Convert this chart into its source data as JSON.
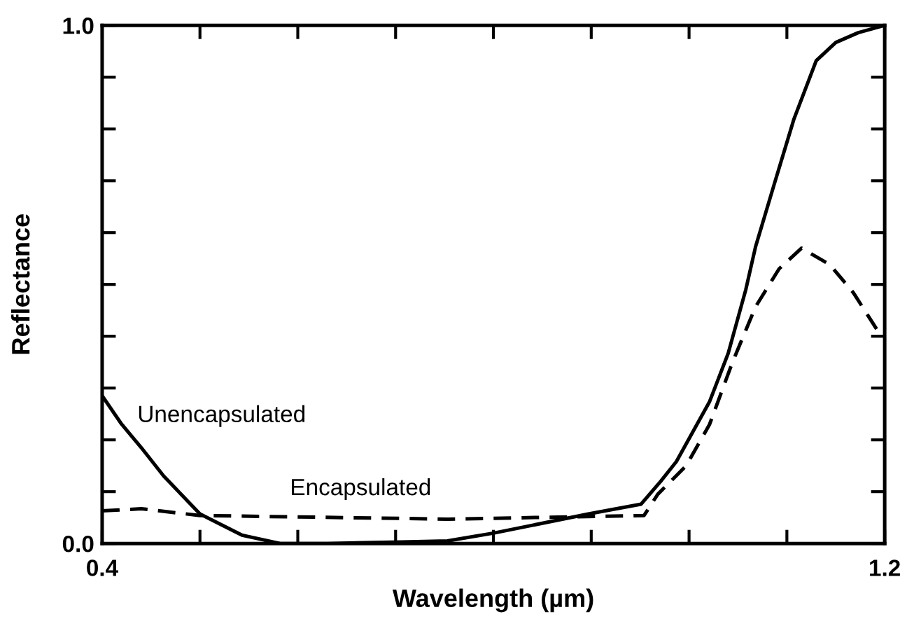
{
  "chart_data": {
    "type": "line",
    "xlabel": "Wavelength (µm)",
    "ylabel": "Reflectance",
    "xlim": [
      0.4,
      1.2
    ],
    "ylim": [
      0.0,
      1.0
    ],
    "xticks": [
      {
        "value": 0.4,
        "label": "0.4"
      },
      {
        "value": 0.5,
        "label": null
      },
      {
        "value": 0.6,
        "label": null
      },
      {
        "value": 0.7,
        "label": null
      },
      {
        "value": 0.8,
        "label": null
      },
      {
        "value": 0.9,
        "label": null
      },
      {
        "value": 1.0,
        "label": null
      },
      {
        "value": 1.1,
        "label": null
      },
      {
        "value": 1.2,
        "label": "1.2"
      }
    ],
    "yticks": [
      {
        "value": 0.0,
        "label": "0.0"
      },
      {
        "value": 0.1,
        "label": null
      },
      {
        "value": 0.2,
        "label": null
      },
      {
        "value": 0.3,
        "label": null
      },
      {
        "value": 0.4,
        "label": null
      },
      {
        "value": 0.5,
        "label": null
      },
      {
        "value": 0.6,
        "label": null
      },
      {
        "value": 0.7,
        "label": null
      },
      {
        "value": 0.8,
        "label": null
      },
      {
        "value": 0.9,
        "label": null
      },
      {
        "value": 1.0,
        "label": "1.0"
      }
    ],
    "grid": false,
    "legend": false,
    "marker": "none",
    "series": [
      {
        "name": "Unencapsulated",
        "color": "#000000",
        "line_style": "solid",
        "x": [
          0.4,
          0.42,
          0.44,
          0.463,
          0.5,
          0.543,
          0.582,
          0.63,
          0.706,
          0.753,
          0.8,
          0.897,
          0.951,
          0.971,
          0.987,
          1.021,
          1.04,
          1.058,
          1.068,
          1.087,
          1.107,
          1.13,
          1.15,
          1.173,
          1.2
        ],
        "values": [
          0.285,
          0.23,
          0.185,
          0.13,
          0.057,
          0.016,
          0.0,
          0.0,
          0.003,
          0.005,
          0.02,
          0.057,
          0.076,
          0.12,
          0.158,
          0.274,
          0.367,
          0.49,
          0.573,
          0.693,
          0.818,
          0.932,
          0.967,
          0.986,
          1.0
        ]
      },
      {
        "name": "Encapsulated",
        "color": "#000000",
        "line_style": "dashed",
        "x": [
          0.4,
          0.44,
          0.5,
          0.753,
          0.954,
          0.968,
          0.997,
          1.021,
          1.044,
          1.068,
          1.092,
          1.115,
          1.144,
          1.168,
          1.193
        ],
        "values": [
          0.063,
          0.067,
          0.054,
          0.047,
          0.054,
          0.095,
          0.15,
          0.23,
          0.348,
          0.457,
          0.53,
          0.57,
          0.538,
          0.484,
          0.41
        ]
      }
    ]
  }
}
